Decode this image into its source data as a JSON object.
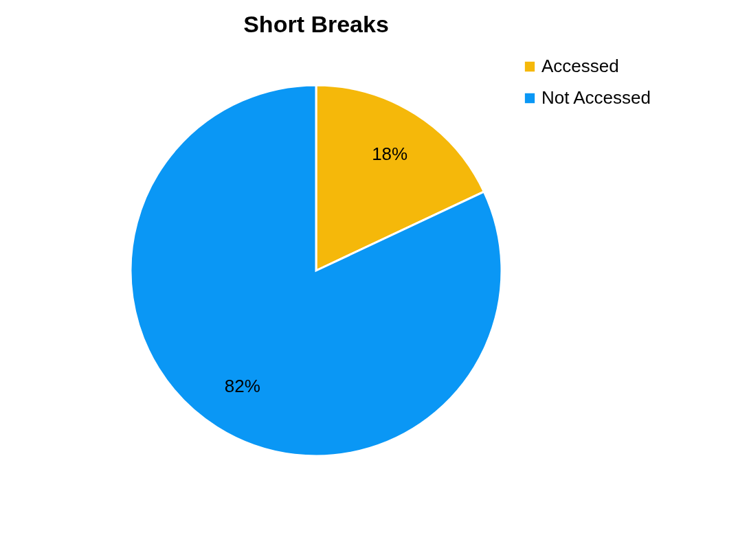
{
  "chart_data": {
    "type": "pie",
    "title": "Short Breaks",
    "categories": [
      "Accessed",
      "Not Accessed"
    ],
    "values": [
      18,
      82
    ],
    "colors": [
      "#f5b80a",
      "#0a97f5"
    ],
    "value_labels": [
      "18%",
      "82%"
    ],
    "legend": "right"
  }
}
